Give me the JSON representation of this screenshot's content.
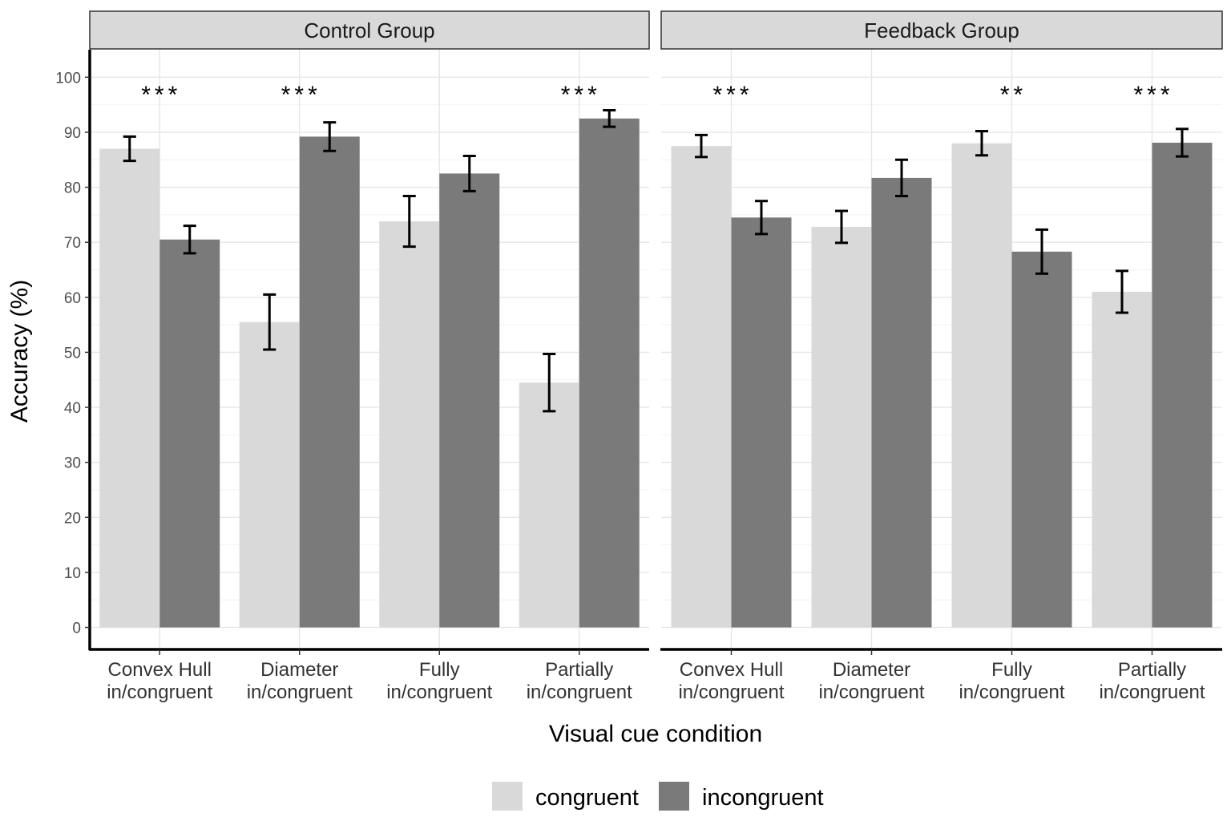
{
  "chart_data": {
    "type": "bar",
    "ylabel": "Accuracy (%)",
    "xlabel": "Visual cue condition",
    "ylim": [
      -4,
      105
    ],
    "yticks": [
      0,
      10,
      20,
      30,
      40,
      50,
      60,
      70,
      80,
      90,
      100
    ],
    "grid": true,
    "legend": {
      "position": "bottom",
      "entries": [
        {
          "name": "congruent",
          "color": "#d9d9d9"
        },
        {
          "name": "incongruent",
          "color": "#7a7a7a"
        }
      ]
    },
    "categories": [
      [
        "Convex Hull",
        "in/congruent"
      ],
      [
        "Diameter",
        "in/congruent"
      ],
      [
        "Fully",
        "in/congruent"
      ],
      [
        "Partially",
        "in/congruent"
      ]
    ],
    "panels": [
      {
        "title": "Control Group",
        "series": [
          {
            "name": "congruent",
            "values": [
              87.0,
              55.5,
              73.8,
              44.5
            ],
            "errors": [
              2.2,
              5.0,
              4.6,
              5.2
            ]
          },
          {
            "name": "incongruent",
            "values": [
              70.5,
              89.2,
              82.5,
              92.5
            ],
            "errors": [
              2.5,
              2.6,
              3.2,
              1.5
            ]
          }
        ],
        "significance": [
          "***",
          "***",
          "",
          "***"
        ]
      },
      {
        "title": "Feedback Group",
        "series": [
          {
            "name": "congruent",
            "values": [
              87.5,
              72.8,
              88.0,
              61.0
            ],
            "errors": [
              2.0,
              2.9,
              2.2,
              3.8
            ]
          },
          {
            "name": "incongruent",
            "values": [
              74.5,
              81.7,
              68.3,
              88.1
            ],
            "errors": [
              3.0,
              3.3,
              4.0,
              2.5
            ]
          }
        ],
        "significance": [
          "***",
          "",
          "**",
          "***"
        ]
      }
    ]
  }
}
